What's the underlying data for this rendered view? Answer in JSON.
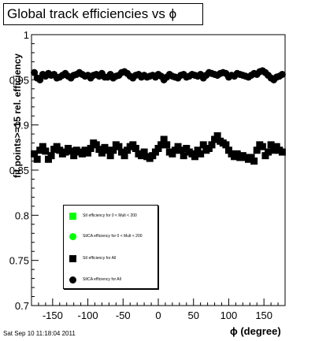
{
  "title": "Global track efficiencies vs ϕ",
  "timestamp": "Sat Sep 10 11:18:04 2011",
  "chart_data": {
    "type": "scatter",
    "xlabel": "ϕ (degree)",
    "ylabel": "fit points>=15 rel. efficiency",
    "xlim": [
      -180,
      180
    ],
    "ylim": [
      0.7,
      1.0
    ],
    "x_ticks": [
      -150,
      -100,
      -50,
      0,
      50,
      100,
      150
    ],
    "x_tick_labels": [
      "-150",
      "-100",
      "-50",
      "0",
      "50",
      "100",
      "150"
    ],
    "y_ticks": [
      0.7,
      0.75,
      0.8,
      0.85,
      0.9,
      0.95,
      1.0
    ],
    "y_tick_labels": [
      "0.7",
      "0.75",
      "0.8",
      "0.85",
      "0.9",
      "0.95",
      "1"
    ],
    "legend_position": "lower-left",
    "series": [
      {
        "name": "StI efficiency  for 0 < Mult < 200",
        "marker": "square",
        "color": "#00ff00",
        "x": [],
        "y": []
      },
      {
        "name": "StICA efficiency  for 0 < Mult < 200",
        "marker": "circle",
        "color": "#00ff00",
        "x": [],
        "y": []
      },
      {
        "name": "StI efficiency  for All",
        "marker": "square",
        "color": "#000000",
        "x": [
          -176,
          -172,
          -168,
          -164,
          -160,
          -156,
          -152,
          -148,
          -144,
          -140,
          -136,
          -132,
          -128,
          -124,
          -120,
          -116,
          -112,
          -108,
          -104,
          -100,
          -96,
          -92,
          -88,
          -84,
          -80,
          -76,
          -72,
          -68,
          -64,
          -60,
          -56,
          -52,
          -48,
          -44,
          -40,
          -36,
          -32,
          -28,
          -24,
          -20,
          -16,
          -12,
          -8,
          -4,
          0,
          4,
          8,
          12,
          16,
          20,
          24,
          28,
          32,
          36,
          40,
          44,
          48,
          52,
          56,
          60,
          64,
          68,
          72,
          76,
          80,
          84,
          88,
          92,
          96,
          100,
          104,
          108,
          112,
          116,
          120,
          124,
          128,
          132,
          136,
          140,
          144,
          148,
          152,
          156,
          160,
          164,
          168,
          172,
          176
        ],
        "y": [
          0.868,
          0.862,
          0.872,
          0.876,
          0.871,
          0.862,
          0.866,
          0.873,
          0.876,
          0.872,
          0.868,
          0.87,
          0.874,
          0.871,
          0.866,
          0.872,
          0.87,
          0.868,
          0.872,
          0.869,
          0.874,
          0.88,
          0.878,
          0.873,
          0.869,
          0.875,
          0.872,
          0.866,
          0.872,
          0.878,
          0.876,
          0.87,
          0.866,
          0.872,
          0.876,
          0.878,
          0.874,
          0.868,
          0.866,
          0.87,
          0.865,
          0.863,
          0.866,
          0.87,
          0.874,
          0.878,
          0.884,
          0.878,
          0.87,
          0.868,
          0.872,
          0.876,
          0.872,
          0.866,
          0.874,
          0.87,
          0.868,
          0.865,
          0.872,
          0.868,
          0.878,
          0.872,
          0.874,
          0.878,
          0.884,
          0.888,
          0.882,
          0.88,
          0.878,
          0.872,
          0.868,
          0.865,
          0.868,
          0.864,
          0.866,
          0.864,
          0.862,
          0.864,
          0.86,
          0.872,
          0.878,
          0.876,
          0.866,
          0.87,
          0.878,
          0.872,
          0.876,
          0.872,
          0.87
        ]
      },
      {
        "name": "StICA efficiency  for All",
        "marker": "circle",
        "color": "#000000",
        "x": [
          -176,
          -172,
          -168,
          -164,
          -160,
          -156,
          -152,
          -148,
          -144,
          -140,
          -136,
          -132,
          -128,
          -124,
          -120,
          -116,
          -112,
          -108,
          -104,
          -100,
          -96,
          -92,
          -88,
          -84,
          -80,
          -76,
          -72,
          -68,
          -64,
          -60,
          -56,
          -52,
          -48,
          -44,
          -40,
          -36,
          -32,
          -28,
          -24,
          -20,
          -16,
          -12,
          -8,
          -4,
          0,
          4,
          8,
          12,
          16,
          20,
          24,
          28,
          32,
          36,
          40,
          44,
          48,
          52,
          56,
          60,
          64,
          68,
          72,
          76,
          80,
          84,
          88,
          92,
          96,
          100,
          104,
          108,
          112,
          116,
          120,
          124,
          128,
          132,
          136,
          140,
          144,
          148,
          152,
          156,
          160,
          164,
          168,
          172,
          176
        ],
        "y": [
          0.958,
          0.952,
          0.95,
          0.956,
          0.954,
          0.957,
          0.955,
          0.956,
          0.952,
          0.953,
          0.955,
          0.957,
          0.954,
          0.952,
          0.955,
          0.956,
          0.958,
          0.956,
          0.954,
          0.955,
          0.952,
          0.955,
          0.956,
          0.954,
          0.957,
          0.953,
          0.953,
          0.956,
          0.952,
          0.954,
          0.955,
          0.958,
          0.959,
          0.957,
          0.954,
          0.952,
          0.955,
          0.956,
          0.953,
          0.955,
          0.953,
          0.954,
          0.955,
          0.953,
          0.956,
          0.954,
          0.95,
          0.953,
          0.956,
          0.954,
          0.953,
          0.952,
          0.955,
          0.956,
          0.953,
          0.954,
          0.956,
          0.955,
          0.954,
          0.956,
          0.952,
          0.955,
          0.958,
          0.957,
          0.956,
          0.955,
          0.957,
          0.958,
          0.957,
          0.953,
          0.955,
          0.954,
          0.957,
          0.956,
          0.955,
          0.954,
          0.953,
          0.955,
          0.957,
          0.956,
          0.959,
          0.96,
          0.958,
          0.955,
          0.952,
          0.95,
          0.953,
          0.954,
          0.956
        ]
      }
    ]
  }
}
